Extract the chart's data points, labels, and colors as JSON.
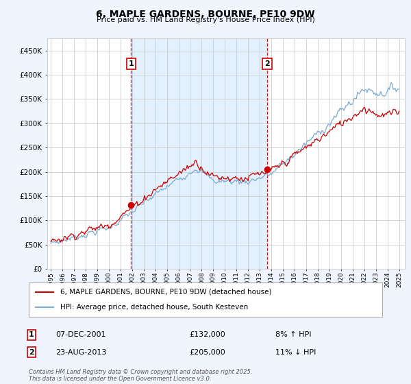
{
  "title": "6, MAPLE GARDENS, BOURNE, PE10 9DW",
  "subtitle": "Price paid vs. HM Land Registry's House Price Index (HPI)",
  "ylim": [
    0,
    475000
  ],
  "yticks": [
    0,
    50000,
    100000,
    150000,
    200000,
    250000,
    300000,
    350000,
    400000,
    450000
  ],
  "xlim_start": 1994.7,
  "xlim_end": 2025.5,
  "sale1_year": 2001.92,
  "sale1_price_val": 132000,
  "sale1_label": "1",
  "sale1_date": "07-DEC-2001",
  "sale1_price": "£132,000",
  "sale1_hpi": "8% ↑ HPI",
  "sale2_year": 2013.64,
  "sale2_price_val": 205000,
  "sale2_label": "2",
  "sale2_date": "23-AUG-2013",
  "sale2_price": "£205,000",
  "sale2_hpi": "11% ↓ HPI",
  "legend_line1": "6, MAPLE GARDENS, BOURNE, PE10 9DW (detached house)",
  "legend_line2": "HPI: Average price, detached house, South Kesteven",
  "footer": "Contains HM Land Registry data © Crown copyright and database right 2025.\nThis data is licensed under the Open Government Licence v3.0.",
  "line_color_red": "#cc0000",
  "line_color_blue": "#7aaad0",
  "vline_color": "#cc0000",
  "shade_color": "#ddeeff",
  "background_color": "#f0f4ff",
  "plot_bg": "#ffffff",
  "grid_color": "#cccccc"
}
